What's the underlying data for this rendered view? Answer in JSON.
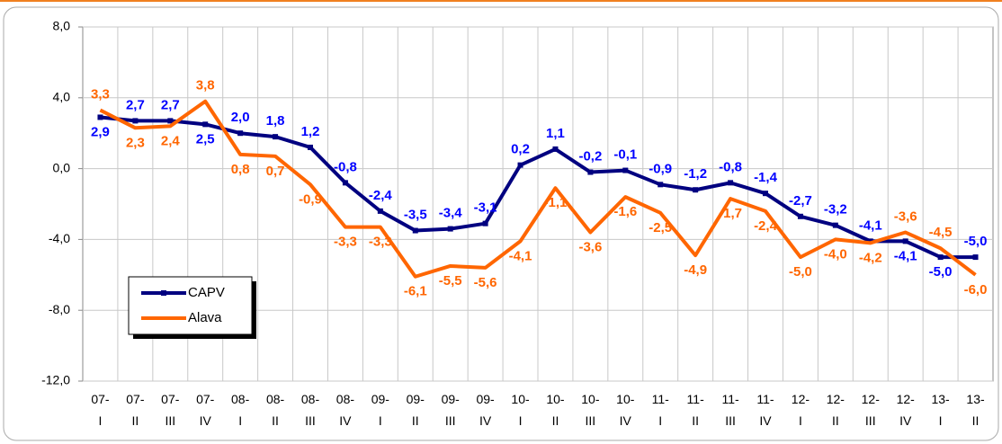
{
  "chart_data": {
    "type": "line",
    "categories": [
      "07- I",
      "07- II",
      "07- III",
      "07- IV",
      "08- I",
      "08- II",
      "08- III",
      "08- IV",
      "09- I",
      "09- II",
      "09- III",
      "09- IV",
      "10- I",
      "10- II",
      "10- III",
      "10- IV",
      "11- I",
      "11- II",
      "11- III",
      "11- IV",
      "12- I",
      "12- II",
      "12- III",
      "12- IV",
      "13- I",
      "13- II"
    ],
    "series": [
      {
        "name": "CAPV",
        "color": "#000080",
        "label_color": "#0000ff",
        "values": [
          2.9,
          2.7,
          2.7,
          2.5,
          2.0,
          1.8,
          1.2,
          -0.8,
          -2.4,
          -3.5,
          -3.4,
          -3.1,
          0.2,
          1.1,
          -0.2,
          -0.1,
          -0.9,
          -1.2,
          -0.8,
          -1.4,
          -2.7,
          -3.2,
          -4.1,
          -4.1,
          -5.0,
          -5.0
        ],
        "value_labels": [
          "2,9",
          "2,7",
          "2,7",
          "2,5",
          "2,0",
          "1,8",
          "1,2",
          "-0,8",
          "-2,4",
          "-3,5",
          "-3,4",
          "-3,1",
          "0,2",
          "1,1",
          "-0,2",
          "-0,1",
          "-0,9",
          "-1,2",
          "-0,8",
          "-1,4",
          "-2,7",
          "-3,2",
          "-4,1",
          "-4,1",
          "-5,0",
          "-5,0"
        ]
      },
      {
        "name": "Alava",
        "color": "#ff6600",
        "label_color": "#ff6600",
        "values": [
          3.3,
          2.3,
          2.4,
          3.8,
          0.8,
          0.7,
          -0.9,
          -3.3,
          -3.3,
          -6.1,
          -5.5,
          -5.6,
          -4.1,
          -1.1,
          -3.6,
          -1.6,
          -2.5,
          -4.9,
          -1.7,
          -2.4,
          -5.0,
          -4.0,
          -4.2,
          -3.6,
          -4.5,
          -6.0
        ],
        "value_labels": [
          "3,3",
          "2,3",
          "2,4",
          "3,8",
          "0,8",
          "0,7",
          "-0,9",
          "-3,3",
          "-3,3",
          "-6,1",
          "-5,5",
          "-5,6",
          "-4,1",
          "-1,1",
          "-3,6",
          "-1,6",
          "-2,5",
          "-4,9",
          "-1,7",
          "-2,4",
          "-5,0",
          "-4,0",
          "-4,2",
          "-3,6",
          "-4,5",
          "-6,0"
        ]
      }
    ],
    "ylim": [
      -12,
      8
    ],
    "yticks": [
      {
        "value": -12,
        "label": "-12,0"
      },
      {
        "value": -8,
        "label": "-8,0"
      },
      {
        "value": -4,
        "label": "-4,0"
      },
      {
        "value": 0,
        "label": "0,0"
      },
      {
        "value": 4,
        "label": "4,0"
      },
      {
        "value": 8,
        "label": "8,0"
      }
    ],
    "grid": true,
    "legend": "lower-left"
  }
}
